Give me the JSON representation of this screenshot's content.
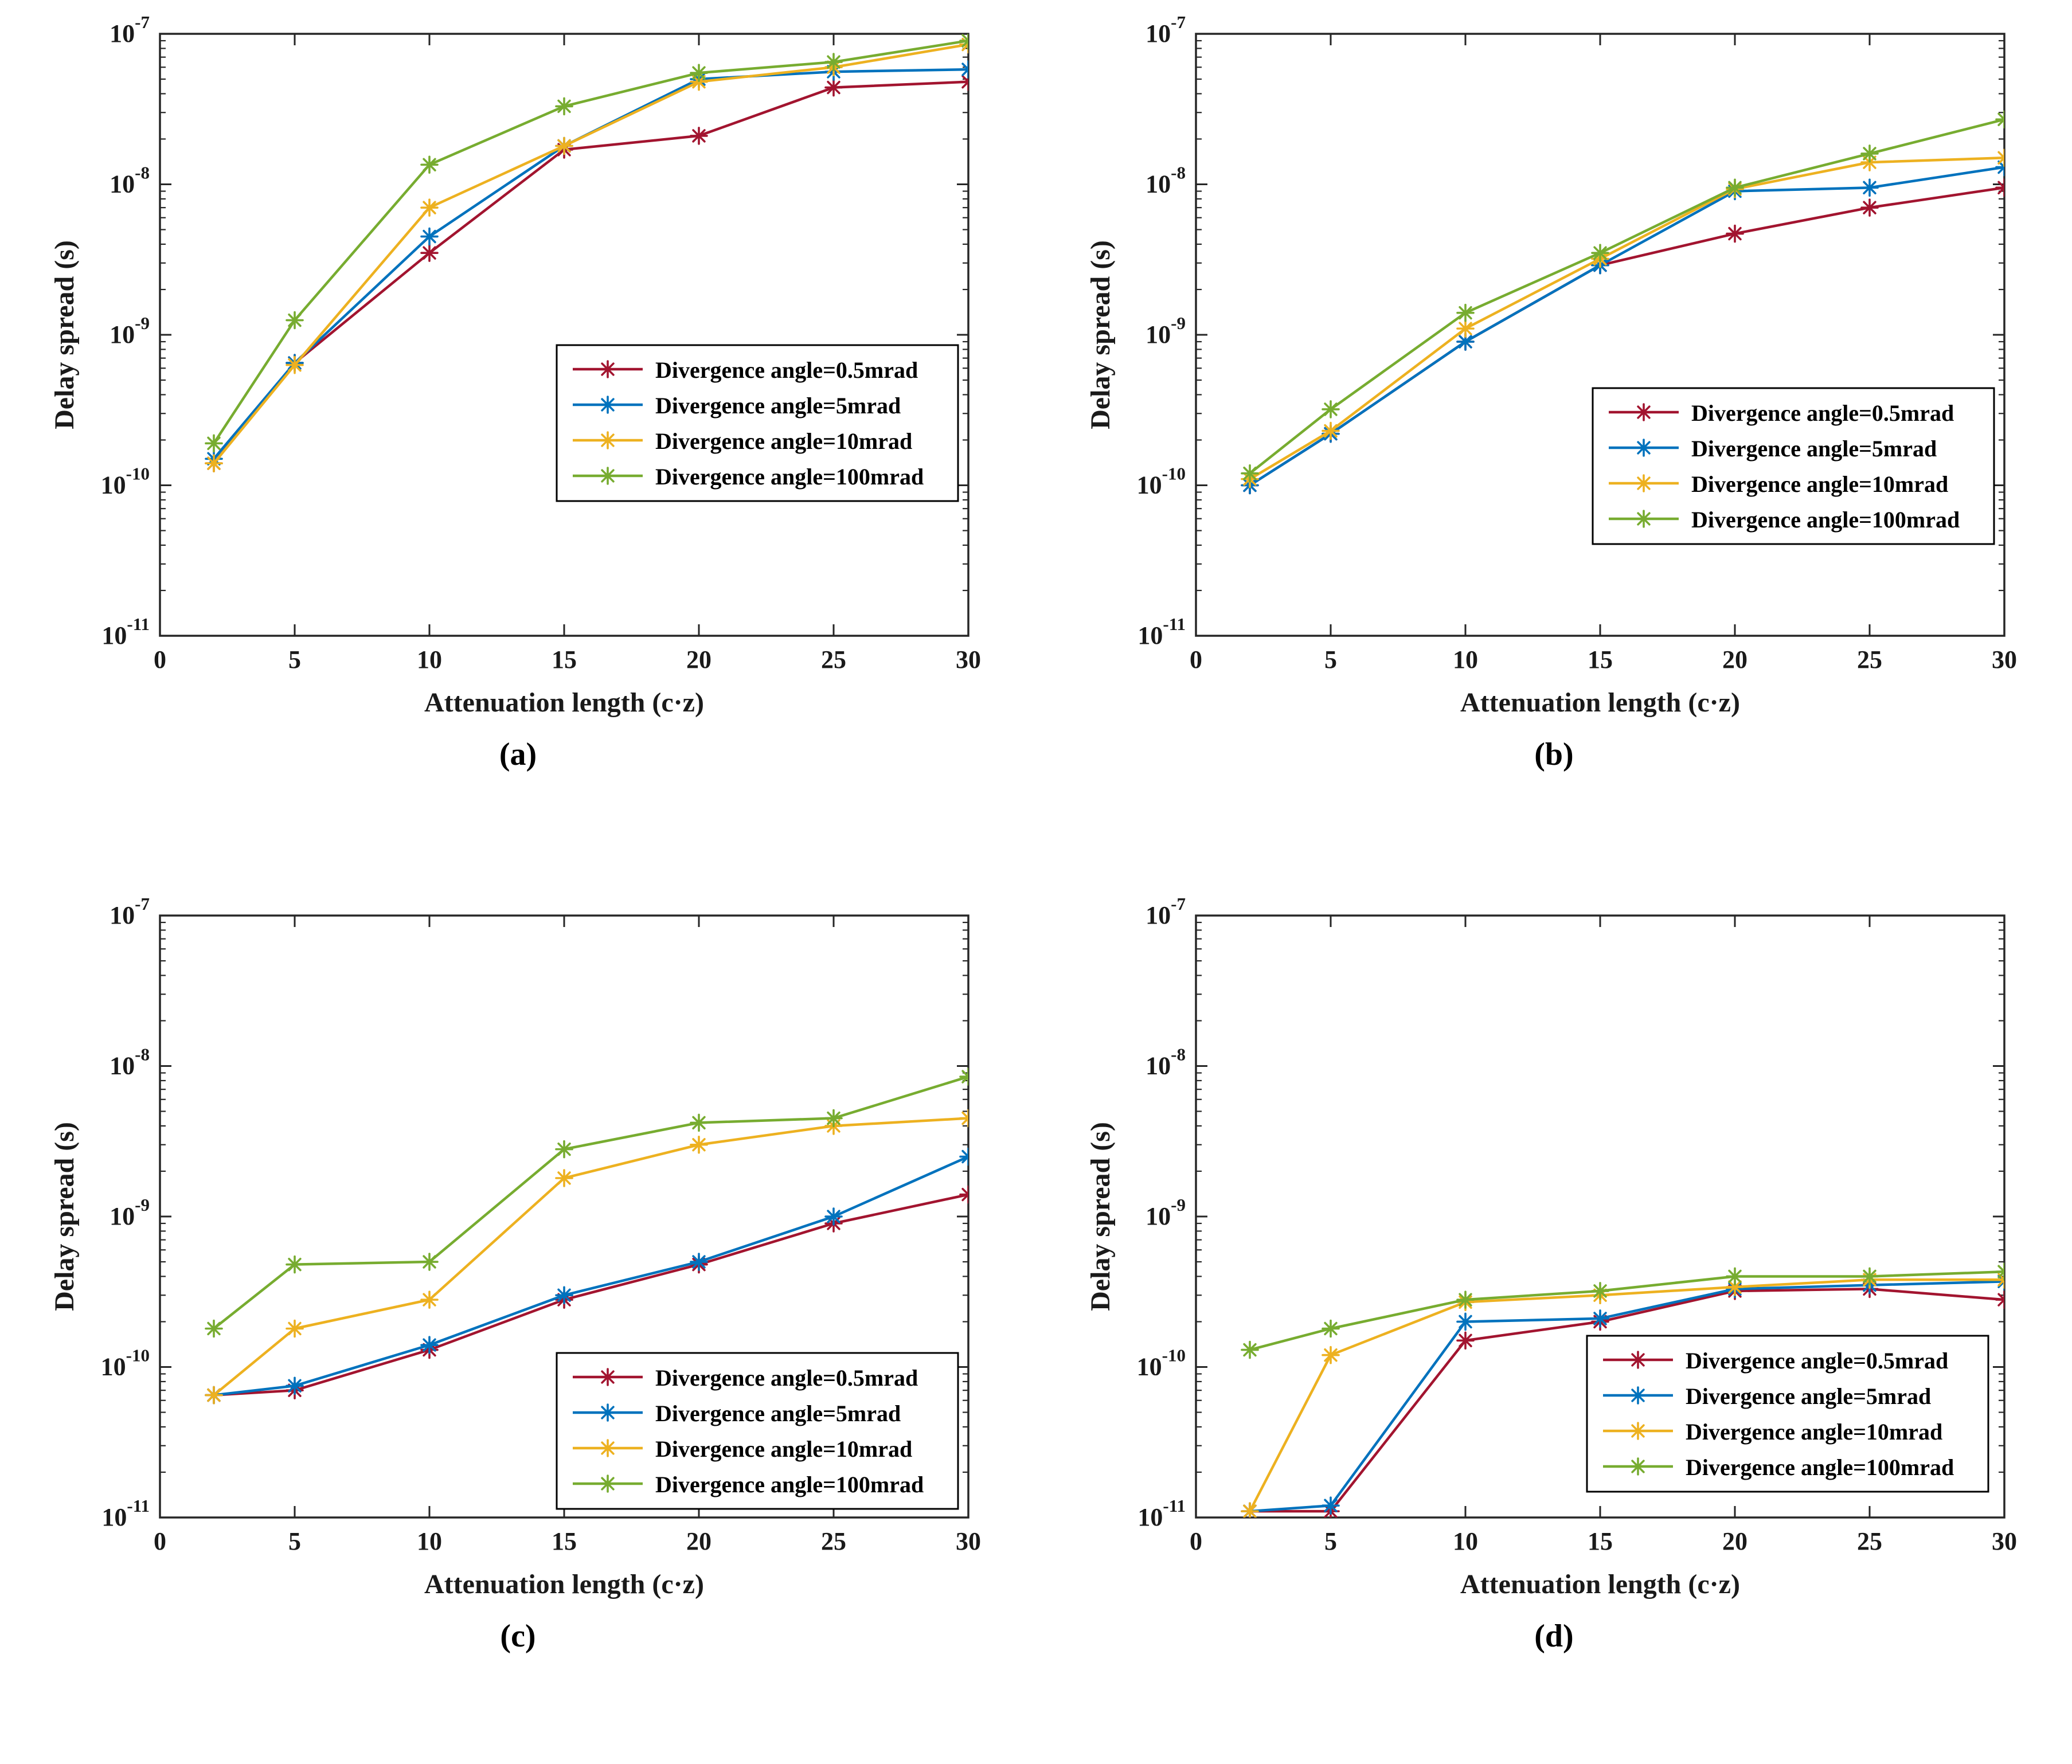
{
  "chart_data": [
    {
      "type": "line",
      "caption": "(a)",
      "xlabel": "Attenuation length (c·z)",
      "ylabel": "Delay spread (s)",
      "xlim": [
        0,
        30
      ],
      "ylim": [
        1e-11,
        1e-07
      ],
      "yscale": "log",
      "grid": false,
      "legend_position": "inside-lower-right",
      "xticks": [
        0,
        5,
        10,
        15,
        20,
        25,
        30
      ],
      "x": [
        2,
        5,
        10,
        15,
        20,
        25,
        30
      ],
      "series": [
        {
          "name": "Divergence angle=0.5mrad",
          "color": "#A2142F",
          "values": [
            1.4e-10,
            6.5e-10,
            3.5e-09,
            1.7e-08,
            2.1e-08,
            4.4e-08,
            4.8e-08
          ]
        },
        {
          "name": "Divergence angle=5mrad",
          "color": "#0072BD",
          "values": [
            1.5e-10,
            6.5e-10,
            4.5e-09,
            1.8e-08,
            5e-08,
            5.6e-08,
            5.8e-08
          ]
        },
        {
          "name": "Divergence angle=10mrad",
          "color": "#EDB120",
          "values": [
            1.4e-10,
            6.3e-10,
            7e-09,
            1.8e-08,
            4.8e-08,
            6e-08,
            8.5e-08
          ]
        },
        {
          "name": "Divergence angle=100mrad",
          "color": "#77AC30",
          "values": [
            1.9e-10,
            1.25e-09,
            1.35e-08,
            3.3e-08,
            5.5e-08,
            6.5e-08,
            9e-08
          ]
        }
      ]
    },
    {
      "type": "line",
      "caption": "(b)",
      "xlabel": "Attenuation length (c·z)",
      "ylabel": "Delay spread (s)",
      "xlim": [
        0,
        30
      ],
      "ylim": [
        1e-11,
        1e-07
      ],
      "yscale": "log",
      "grid": false,
      "legend_position": "inside-lower-right",
      "xticks": [
        0,
        5,
        10,
        15,
        20,
        25,
        30
      ],
      "x": [
        2,
        5,
        10,
        15,
        20,
        25,
        30
      ],
      "series": [
        {
          "name": "Divergence angle=0.5mrad",
          "color": "#A2142F",
          "values": [
            1e-10,
            2.2e-10,
            9e-10,
            2.9e-09,
            4.7e-09,
            7e-09,
            9.5e-09
          ]
        },
        {
          "name": "Divergence angle=5mrad",
          "color": "#0072BD",
          "values": [
            1e-10,
            2.2e-10,
            9e-10,
            2.9e-09,
            9e-09,
            9.5e-09,
            1.3e-08
          ]
        },
        {
          "name": "Divergence angle=10mrad",
          "color": "#EDB120",
          "values": [
            1.1e-10,
            2.3e-10,
            1.1e-09,
            3.2e-09,
            9.3e-09,
            1.4e-08,
            1.5e-08
          ]
        },
        {
          "name": "Divergence angle=100mrad",
          "color": "#77AC30",
          "values": [
            1.2e-10,
            3.2e-10,
            1.4e-09,
            3.5e-09,
            9.5e-09,
            1.6e-08,
            2.7e-08
          ]
        }
      ]
    },
    {
      "type": "line",
      "caption": "(c)",
      "xlabel": "Attenuation length (c·z)",
      "ylabel": "Delay spread (s)",
      "xlim": [
        0,
        30
      ],
      "ylim": [
        1e-11,
        1e-07
      ],
      "yscale": "log",
      "grid": false,
      "legend_position": "inside-lower-right",
      "xticks": [
        0,
        5,
        10,
        15,
        20,
        25,
        30
      ],
      "x": [
        2,
        5,
        10,
        15,
        20,
        25,
        30
      ],
      "series": [
        {
          "name": "Divergence angle=0.5mrad",
          "color": "#A2142F",
          "values": [
            6.5e-11,
            7e-11,
            1.3e-10,
            2.8e-10,
            4.8e-10,
            9e-10,
            1.4e-09
          ]
        },
        {
          "name": "Divergence angle=5mrad",
          "color": "#0072BD",
          "values": [
            6.5e-11,
            7.5e-11,
            1.4e-10,
            3e-10,
            5e-10,
            1e-09,
            2.5e-09
          ]
        },
        {
          "name": "Divergence angle=10mrad",
          "color": "#EDB120",
          "values": [
            6.5e-11,
            1.8e-10,
            2.8e-10,
            1.8e-09,
            3e-09,
            4e-09,
            4.5e-09
          ]
        },
        {
          "name": "Divergence angle=100mrad",
          "color": "#77AC30",
          "values": [
            1.8e-10,
            4.8e-10,
            5e-10,
            2.8e-09,
            4.2e-09,
            4.5e-09,
            8.5e-09
          ]
        }
      ]
    },
    {
      "type": "line",
      "caption": "(d)",
      "xlabel": "Attenuation length (c·z)",
      "ylabel": "Delay spread (s)",
      "xlim": [
        0,
        30
      ],
      "ylim": [
        1e-11,
        1e-07
      ],
      "yscale": "log",
      "grid": false,
      "legend_position": "inside-lower-right",
      "xticks": [
        0,
        5,
        10,
        15,
        20,
        25,
        30
      ],
      "x": [
        2,
        5,
        10,
        15,
        20,
        25,
        30
      ],
      "series": [
        {
          "name": "Divergence angle=0.5mrad",
          "color": "#A2142F",
          "values": [
            1.1e-11,
            1.1e-11,
            1.5e-10,
            2e-10,
            3.2e-10,
            3.3e-10,
            2.8e-10
          ]
        },
        {
          "name": "Divergence angle=5mrad",
          "color": "#0072BD",
          "values": [
            1.1e-11,
            1.2e-11,
            2e-10,
            2.1e-10,
            3.3e-10,
            3.5e-10,
            3.7e-10
          ]
        },
        {
          "name": "Divergence angle=10mrad",
          "color": "#EDB120",
          "values": [
            1.1e-11,
            1.2e-10,
            2.7e-10,
            3e-10,
            3.4e-10,
            3.8e-10,
            3.8e-10
          ]
        },
        {
          "name": "Divergence angle=100mrad",
          "color": "#77AC30",
          "values": [
            1.3e-10,
            1.8e-10,
            2.8e-10,
            3.2e-10,
            4e-10,
            4e-10,
            4.3e-10
          ]
        }
      ]
    }
  ]
}
